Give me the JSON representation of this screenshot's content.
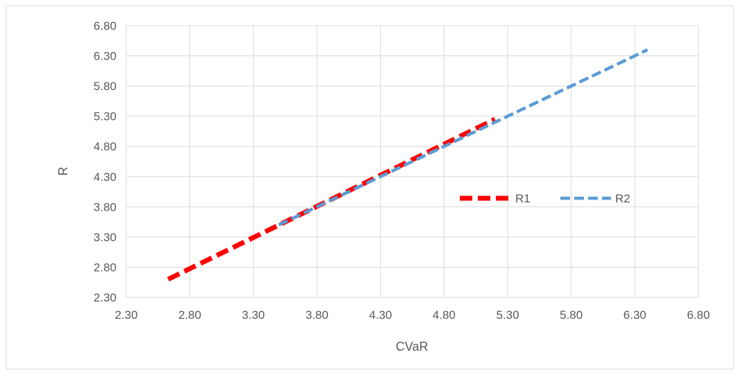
{
  "chart_data": {
    "type": "line",
    "title": "",
    "xlabel": "CVaR",
    "ylabel": "R",
    "xlim": [
      2.3,
      6.8
    ],
    "ylim": [
      2.3,
      6.8
    ],
    "xticks": [
      "2.30",
      "2.80",
      "3.30",
      "3.80",
      "4.30",
      "4.80",
      "5.30",
      "5.80",
      "6.30",
      "6.80"
    ],
    "yticks": [
      "2.30",
      "2.80",
      "3.30",
      "3.80",
      "4.30",
      "4.80",
      "5.30",
      "5.80",
      "6.30",
      "6.80"
    ],
    "grid": true,
    "legend_position": "right",
    "series": [
      {
        "name": "R1",
        "color": "#ff0000",
        "style": "dashed-thick",
        "x": [
          2.63,
          5.2
        ],
        "y": [
          2.6,
          5.25
        ]
      },
      {
        "name": "R2",
        "color": "#5b9bd5",
        "style": "dashed",
        "x": [
          3.5,
          6.4
        ],
        "y": [
          3.5,
          6.4
        ]
      }
    ]
  }
}
